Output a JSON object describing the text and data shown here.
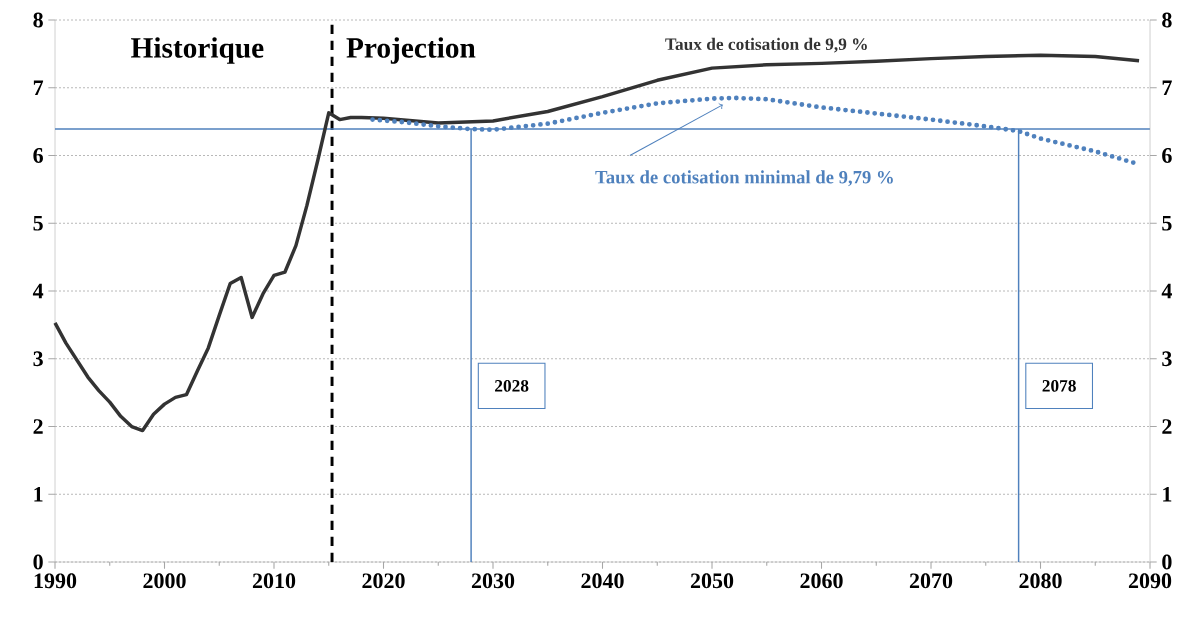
{
  "chart_data": {
    "type": "line",
    "xlim": [
      1990,
      2090
    ],
    "xticks": [
      1990,
      2000,
      2010,
      2020,
      2030,
      2040,
      2050,
      2060,
      2070,
      2080,
      2090
    ],
    "ylim": [
      0,
      8
    ],
    "yticks": [
      0,
      1,
      2,
      3,
      4,
      5,
      6,
      7,
      8
    ],
    "y2lim": [
      0,
      8
    ],
    "y2ticks": [
      0,
      1,
      2,
      3,
      4,
      5,
      6,
      7,
      8
    ],
    "grid": "y",
    "series": [
      {
        "name": "Taux de cotisation de 9,9 %",
        "color": "#333333",
        "line_style": "solid",
        "x": [
          1990,
          1991,
          1993,
          1994,
          1995,
          1996,
          1997,
          1998,
          1999,
          2000,
          2001,
          2002,
          2003,
          2004,
          2005,
          2006,
          2007,
          2008,
          2009,
          2010,
          2011,
          2012,
          2013,
          2014,
          2015,
          2016,
          2017,
          2018,
          2020,
          2025,
          2030,
          2035,
          2040,
          2045,
          2050,
          2055,
          2060,
          2065,
          2070,
          2075,
          2080,
          2085,
          2089
        ],
        "values": [
          3.53,
          3.23,
          2.73,
          2.53,
          2.36,
          2.15,
          2.0,
          1.94,
          2.18,
          2.33,
          2.43,
          2.47,
          2.82,
          3.16,
          3.64,
          4.11,
          4.2,
          3.61,
          3.96,
          4.23,
          4.28,
          4.67,
          5.26,
          5.93,
          6.63,
          6.53,
          6.56,
          6.56,
          6.55,
          6.48,
          6.51,
          6.65,
          6.87,
          7.11,
          7.29,
          7.34,
          7.36,
          7.39,
          7.43,
          7.46,
          7.48,
          7.46,
          7.4
        ]
      },
      {
        "name": "Taux de cotisation minimal de 9,79 %",
        "color": "#4f81bd",
        "line_style": "dotted",
        "x": [
          2019,
          2022,
          2025,
          2028,
          2030,
          2035,
          2040,
          2045,
          2050,
          2052,
          2055,
          2060,
          2065,
          2070,
          2075,
          2078,
          2080,
          2085,
          2089
        ],
        "values": [
          6.53,
          6.49,
          6.43,
          6.39,
          6.38,
          6.47,
          6.63,
          6.77,
          6.84,
          6.85,
          6.83,
          6.71,
          6.62,
          6.53,
          6.43,
          6.36,
          6.25,
          6.06,
          5.87
        ]
      }
    ],
    "ref_lines": [
      {
        "axis": "x",
        "value": 2015.3,
        "color": "#000000",
        "line_style": "dashed"
      },
      {
        "axis": "y",
        "value": 6.39,
        "color": "#4f81bd",
        "line_style": "solid"
      },
      {
        "axis": "x",
        "value": 2028,
        "label": "2028",
        "color": "#4f81bd",
        "line_style": "solid"
      },
      {
        "axis": "x",
        "value": 2078,
        "label": "2078",
        "color": "#4f81bd",
        "line_style": "solid"
      }
    ],
    "annotations": [
      "Historique",
      "Projection"
    ]
  }
}
